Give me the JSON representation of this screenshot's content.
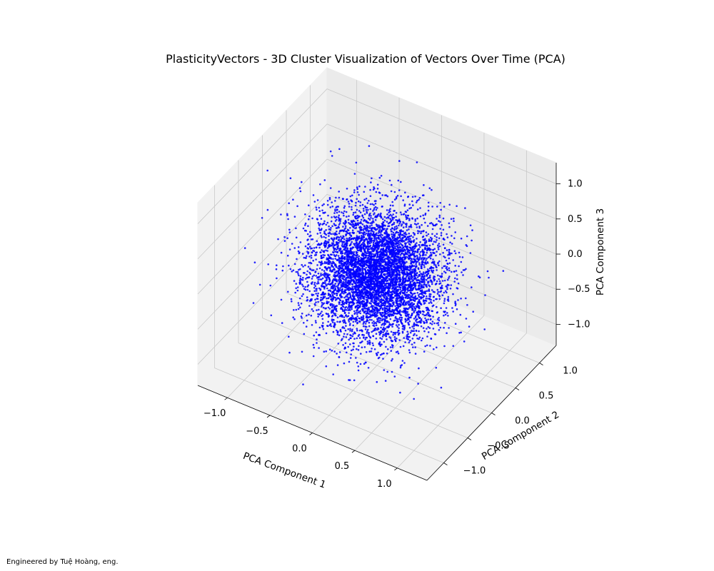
{
  "chart_data": {
    "type": "scatter",
    "projection": "3d",
    "title": "PlasticityVectors - 3D Cluster Visualization of Vectors Over Time (PCA)",
    "xlabel": "PCA Component 1",
    "ylabel": "PCA Component 2",
    "zlabel": "PCA Component 3",
    "xlim": [
      -1.35,
      1.35
    ],
    "ylim": [
      -1.35,
      1.35
    ],
    "zlim": [
      -1.3,
      1.3
    ],
    "xticks": [
      -1.0,
      -0.5,
      0.0,
      0.5,
      1.0
    ],
    "yticks": [
      -1.0,
      -0.5,
      0.0,
      0.5,
      1.0
    ],
    "zticks": [
      -1.0,
      -0.5,
      0.0,
      0.5,
      1.0
    ],
    "xtick_labels": [
      "−1.0",
      "−0.5",
      "0.0",
      "0.5",
      "1.0"
    ],
    "ytick_labels": [
      "−1.0",
      "−0.5",
      "0.0",
      "0.5",
      "1.0"
    ],
    "ztick_labels": [
      "−1.0",
      "−0.5",
      "0.0",
      "0.5",
      "1.0"
    ],
    "grid": true,
    "series": [
      {
        "color": "#0000ff",
        "distribution": "approximately spherical gaussian cluster centered near origin",
        "center": [
          0.0,
          0.0,
          0.0
        ],
        "std": 0.35,
        "approx_point_count": 6000
      }
    ]
  },
  "footer": {
    "credit": "Engineered by Tuệ Hoàng, eng."
  }
}
